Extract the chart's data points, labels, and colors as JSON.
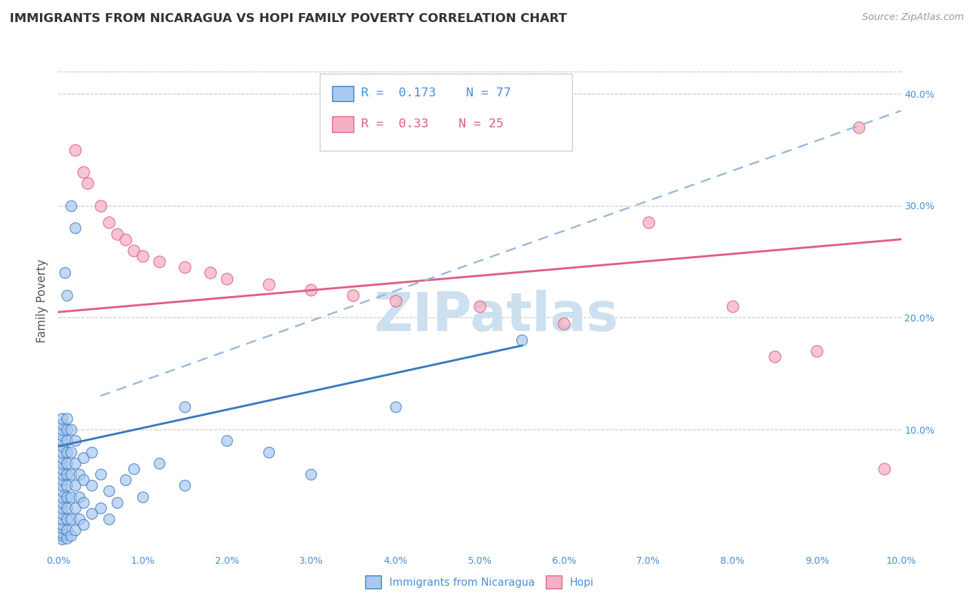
{
  "title": "IMMIGRANTS FROM NICARAGUA VS HOPI FAMILY POVERTY CORRELATION CHART",
  "source_text": "Source: ZipAtlas.com",
  "ylabel": "Family Poverty",
  "legend_label1": "Immigrants from Nicaragua",
  "legend_label2": "Hopi",
  "R1": 0.173,
  "N1": 77,
  "R2": 0.33,
  "N2": 25,
  "color1": "#a8c8f0",
  "color2": "#f5b0c5",
  "trendline1_color": "#3a7abf",
  "trendline2_color": "#e06080",
  "trendline_dash_color": "#9ab8dd",
  "xlim": [
    0,
    10
  ],
  "ylim": [
    -1,
    44
  ],
  "xtick_vals": [
    0,
    1,
    2,
    3,
    4,
    5,
    6,
    7,
    8,
    9,
    10
  ],
  "xtick_labels": [
    "0.0%",
    "1.0%",
    "2.0%",
    "3.0%",
    "4.0%",
    "5.0%",
    "6.0%",
    "7.0%",
    "8.0%",
    "9.0%",
    "10.0%"
  ],
  "ytick_vals": [
    10,
    20,
    30,
    40
  ],
  "ytick_labels": [
    "10.0%",
    "20.0%",
    "30.0%",
    "40.0%"
  ],
  "background_color": "#ffffff",
  "watermark_text": "ZIPatlas",
  "watermark_color": "#cce0f0",
  "blue_trendline": [
    [
      0,
      8.5
    ],
    [
      5.5,
      17.5
    ]
  ],
  "pink_trendline": [
    [
      0,
      20.5
    ],
    [
      10,
      27.0
    ]
  ],
  "blue_dash_trendline": [
    [
      0.5,
      13.0
    ],
    [
      10,
      38.5
    ]
  ],
  "blue_points": [
    [
      0.05,
      0.2
    ],
    [
      0.05,
      0.5
    ],
    [
      0.05,
      0.8
    ],
    [
      0.05,
      1.2
    ],
    [
      0.05,
      1.5
    ],
    [
      0.05,
      2.0
    ],
    [
      0.05,
      2.5
    ],
    [
      0.05,
      3.0
    ],
    [
      0.05,
      3.5
    ],
    [
      0.05,
      4.0
    ],
    [
      0.05,
      4.5
    ],
    [
      0.05,
      5.0
    ],
    [
      0.05,
      5.5
    ],
    [
      0.05,
      6.0
    ],
    [
      0.05,
      6.5
    ],
    [
      0.05,
      7.0
    ],
    [
      0.05,
      7.5
    ],
    [
      0.05,
      8.0
    ],
    [
      0.05,
      8.5
    ],
    [
      0.05,
      9.0
    ],
    [
      0.05,
      9.5
    ],
    [
      0.05,
      10.0
    ],
    [
      0.05,
      10.5
    ],
    [
      0.05,
      11.0
    ],
    [
      0.1,
      0.3
    ],
    [
      0.1,
      1.0
    ],
    [
      0.1,
      2.0
    ],
    [
      0.1,
      3.0
    ],
    [
      0.1,
      4.0
    ],
    [
      0.1,
      5.0
    ],
    [
      0.1,
      6.0
    ],
    [
      0.1,
      7.0
    ],
    [
      0.1,
      8.0
    ],
    [
      0.1,
      9.0
    ],
    [
      0.1,
      10.0
    ],
    [
      0.1,
      11.0
    ],
    [
      0.15,
      0.5
    ],
    [
      0.15,
      2.0
    ],
    [
      0.15,
      4.0
    ],
    [
      0.15,
      6.0
    ],
    [
      0.15,
      8.0
    ],
    [
      0.15,
      10.0
    ],
    [
      0.2,
      1.0
    ],
    [
      0.2,
      3.0
    ],
    [
      0.2,
      5.0
    ],
    [
      0.2,
      7.0
    ],
    [
      0.2,
      9.0
    ],
    [
      0.25,
      2.0
    ],
    [
      0.25,
      4.0
    ],
    [
      0.25,
      6.0
    ],
    [
      0.3,
      1.5
    ],
    [
      0.3,
      3.5
    ],
    [
      0.3,
      5.5
    ],
    [
      0.3,
      7.5
    ],
    [
      0.4,
      2.5
    ],
    [
      0.4,
      5.0
    ],
    [
      0.4,
      8.0
    ],
    [
      0.5,
      3.0
    ],
    [
      0.5,
      6.0
    ],
    [
      0.6,
      2.0
    ],
    [
      0.6,
      4.5
    ],
    [
      0.7,
      3.5
    ],
    [
      0.8,
      5.5
    ],
    [
      0.9,
      6.5
    ],
    [
      1.0,
      4.0
    ],
    [
      1.2,
      7.0
    ],
    [
      1.5,
      5.0
    ],
    [
      1.5,
      12.0
    ],
    [
      2.0,
      9.0
    ],
    [
      2.5,
      8.0
    ],
    [
      3.0,
      6.0
    ],
    [
      4.0,
      12.0
    ],
    [
      5.5,
      18.0
    ],
    [
      0.1,
      22.0
    ],
    [
      0.2,
      28.0
    ],
    [
      0.15,
      30.0
    ],
    [
      0.08,
      24.0
    ]
  ],
  "pink_points": [
    [
      0.2,
      35.0
    ],
    [
      0.3,
      33.0
    ],
    [
      0.35,
      32.0
    ],
    [
      0.5,
      30.0
    ],
    [
      0.6,
      28.5
    ],
    [
      0.7,
      27.5
    ],
    [
      0.8,
      27.0
    ],
    [
      0.9,
      26.0
    ],
    [
      1.0,
      25.5
    ],
    [
      1.2,
      25.0
    ],
    [
      1.5,
      24.5
    ],
    [
      1.8,
      24.0
    ],
    [
      2.0,
      23.5
    ],
    [
      2.5,
      23.0
    ],
    [
      3.0,
      22.5
    ],
    [
      3.5,
      22.0
    ],
    [
      4.0,
      21.5
    ],
    [
      5.0,
      21.0
    ],
    [
      6.0,
      19.5
    ],
    [
      7.0,
      28.5
    ],
    [
      8.0,
      21.0
    ],
    [
      8.5,
      16.5
    ],
    [
      9.0,
      17.0
    ],
    [
      9.5,
      37.0
    ],
    [
      9.8,
      6.5
    ]
  ]
}
